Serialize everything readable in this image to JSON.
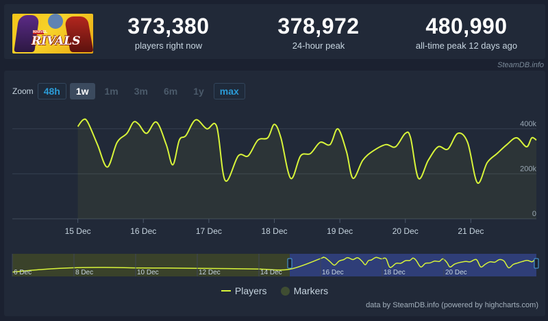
{
  "game": {
    "thumbnail_text": "RIVALS",
    "thumbnail_badge": "MARVEL"
  },
  "stats": [
    {
      "value": "373,380",
      "label": "players right now"
    },
    {
      "value": "378,972",
      "label": "24-hour peak"
    },
    {
      "value": "480,990",
      "label": "all-time peak 12 days ago"
    }
  ],
  "source_credit": "SteamDB.info",
  "zoom": {
    "label": "Zoom",
    "buttons": [
      {
        "label": "48h",
        "state": "link"
      },
      {
        "label": "1w",
        "state": "active"
      },
      {
        "label": "1m",
        "state": "disabled"
      },
      {
        "label": "3m",
        "state": "disabled"
      },
      {
        "label": "6m",
        "state": "disabled"
      },
      {
        "label": "1y",
        "state": "disabled"
      },
      {
        "label": "max",
        "state": "link"
      }
    ]
  },
  "legend": {
    "players": "Players",
    "markers": "Markers"
  },
  "footer_credit": "data by SteamDB.info (powered by highcharts.com)",
  "colors": {
    "line": "#d8f43a",
    "navigator_fill_left": "#3a422a",
    "navigator_fill_right": "#2f3e78",
    "handle": "#4aa6e8"
  },
  "chart_data": {
    "type": "line",
    "series_name": "Players",
    "x_tick_labels": [
      "15 Dec",
      "16 Dec",
      "17 Dec",
      "18 Dec",
      "19 Dec",
      "20 Dec",
      "21 Dec"
    ],
    "y_tick_labels": [
      "0",
      "200k",
      "400k"
    ],
    "ylim": [
      0,
      500000
    ],
    "x_days": [
      0,
      0.08,
      0.15,
      0.3,
      0.45,
      0.6,
      0.75,
      0.85,
      0.93,
      1.05,
      1.2,
      1.35,
      1.45,
      1.55,
      1.65,
      1.8,
      1.97,
      2.12,
      2.25,
      2.45,
      2.6,
      2.75,
      2.9,
      3.0,
      3.1,
      3.25,
      3.4,
      3.55,
      3.7,
      3.85,
      3.97,
      4.1,
      4.2,
      4.35,
      4.5,
      4.7,
      4.85,
      5.0,
      5.08,
      5.2,
      5.35,
      5.5,
      5.65,
      5.8,
      5.95,
      6.1,
      6.25,
      6.4,
      6.55,
      6.7,
      6.85,
      6.93,
      7.0
    ],
    "players": [
      410000,
      440000,
      430000,
      330000,
      230000,
      340000,
      380000,
      430000,
      420000,
      380000,
      430000,
      330000,
      240000,
      350000,
      370000,
      440000,
      400000,
      410000,
      170000,
      280000,
      280000,
      350000,
      360000,
      420000,
      360000,
      180000,
      280000,
      290000,
      340000,
      330000,
      400000,
      300000,
      180000,
      260000,
      300000,
      330000,
      320000,
      380000,
      360000,
      180000,
      260000,
      320000,
      310000,
      380000,
      340000,
      160000,
      250000,
      290000,
      330000,
      360000,
      320000,
      360000,
      350000
    ],
    "x_range_days": [
      -1.0,
      7.0
    ],
    "navigator": {
      "tick_labels": [
        "6 Dec",
        "8 Dec",
        "10 Dec",
        "12 Dec",
        "14 Dec",
        "16 Dec",
        "18 Dec",
        "20 Dec"
      ],
      "range_days": [
        -10,
        7
      ],
      "selected_from_day": -1.0
    }
  }
}
